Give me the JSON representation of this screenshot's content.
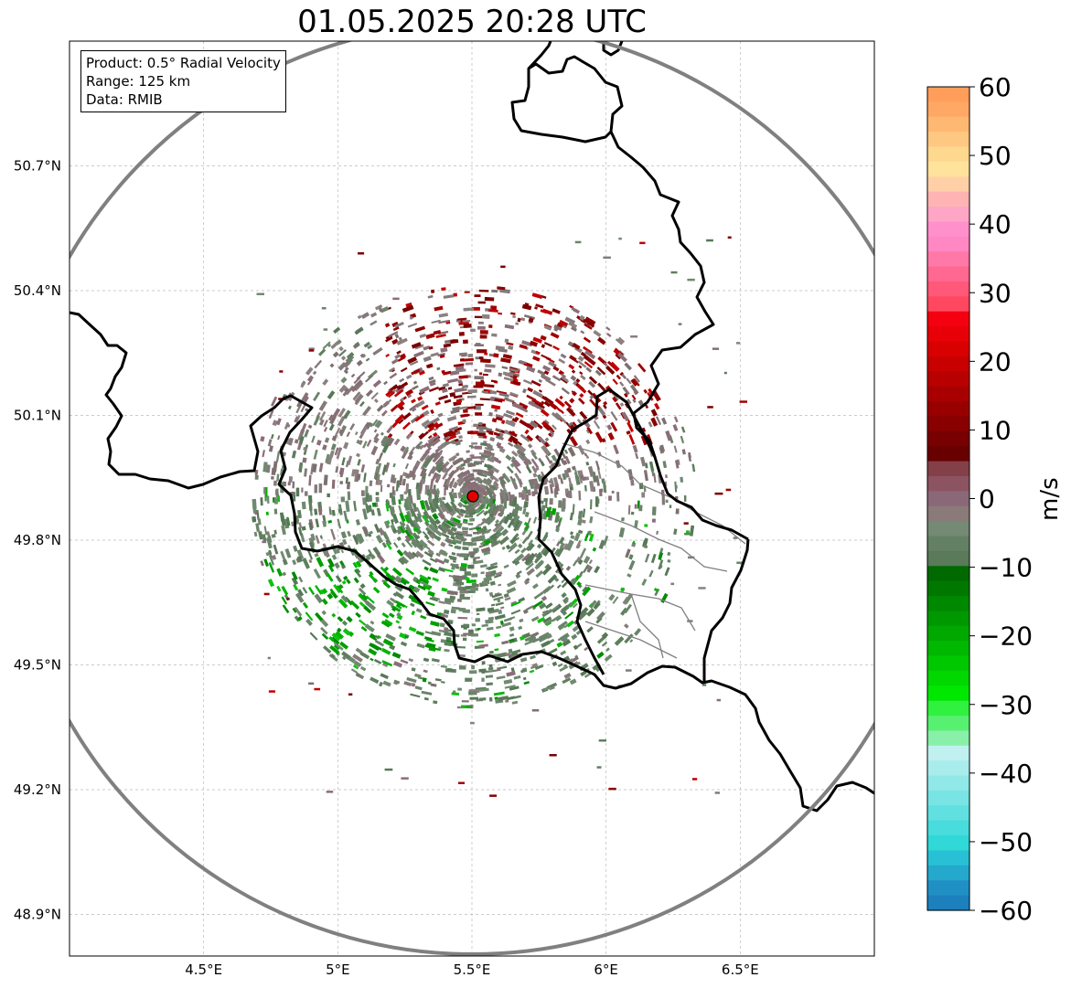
{
  "title": "01.05.2025 20:28 UTC",
  "info": {
    "product": "Product: 0.5° Radial Velocity",
    "range": "Range: 125 km",
    "data": "Data: RMIB"
  },
  "map": {
    "lon_range": [
      4.0,
      7.0
    ],
    "lat_range": [
      48.8,
      51.0
    ],
    "lon_ticks": [
      "4.5°E",
      "5°E",
      "5.5°E",
      "6°E",
      "6.5°E"
    ],
    "lon_tick_values": [
      4.5,
      5.0,
      5.5,
      6.0,
      6.5
    ],
    "lat_ticks": [
      "50.7°N",
      "50.4°N",
      "50.1°N",
      "49.8°N",
      "49.5°N",
      "49.2°N",
      "48.9°N"
    ],
    "lat_tick_values": [
      50.7,
      50.4,
      50.1,
      49.8,
      49.5,
      49.2,
      48.9
    ],
    "radar_site": {
      "lon": 5.505,
      "lat": 49.915
    },
    "range_ring_km": 125,
    "grid": true,
    "colors": {
      "borders": "#000000",
      "admin_lines": "#808080",
      "ring": "#808080",
      "radar": "#e00000"
    }
  },
  "colorbar": {
    "label": "m/s",
    "ticks": [
      "60",
      "50",
      "40",
      "30",
      "20",
      "10",
      "0",
      "−10",
      "−20",
      "−30",
      "−40",
      "−50",
      "−60"
    ],
    "range": [
      -60,
      60
    ],
    "colors_top_to_bottom": [
      "#ff9e5a",
      "#ffa866",
      "#ffb872",
      "#ffc882",
      "#ffd890",
      "#ffe39c",
      "#ffd0a8",
      "#ffb4b4",
      "#ffa6c6",
      "#ff90cc",
      "#ff88c4",
      "#ff78a8",
      "#ff6890",
      "#ff5878",
      "#ff4860",
      "#f40010",
      "#e80008",
      "#d80000",
      "#c80000",
      "#b80000",
      "#a80000",
      "#980000",
      "#880000",
      "#780000",
      "#680000",
      "#844048",
      "#8c5460",
      "#8a6878",
      "#8a7a7a",
      "#748a74",
      "#648064",
      "#5a7a5a",
      "#006a00",
      "#007800",
      "#008800",
      "#009800",
      "#00a800",
      "#00b800",
      "#00c800",
      "#00d800",
      "#00e800",
      "#30f040",
      "#58f070",
      "#88f0a8",
      "#c0f0f0",
      "#a8ecec",
      "#90e8e8",
      "#78e4e4",
      "#60e0e0",
      "#48dcdc",
      "#30d8d8",
      "#28c0d4",
      "#24a8cc",
      "#2090c4",
      "#1c80bc"
    ]
  }
}
